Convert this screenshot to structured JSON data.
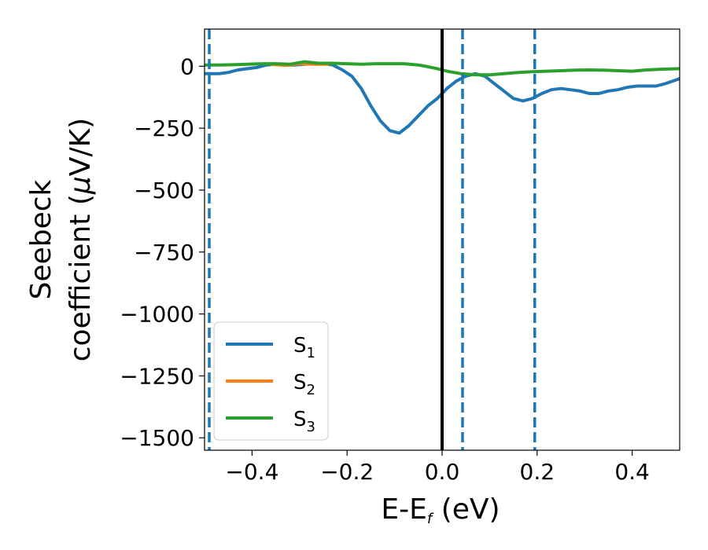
{
  "chart_data": {
    "type": "line",
    "xlabel": {
      "main": "E-E",
      "sub": "f",
      "unit": " (eV)"
    },
    "ylabel": {
      "line1": "Seebeck",
      "line2_pre": "coefficient  (",
      "mu": "μ",
      "line2_post": "V/K)"
    },
    "xlim": [
      -0.5,
      0.5
    ],
    "ylim": [
      -1550,
      150
    ],
    "xticks": [
      -0.4,
      -0.2,
      0.0,
      0.2,
      0.4
    ],
    "xtick_labels": [
      "−0.4",
      "−0.2",
      "0.0",
      "0.2",
      "0.4"
    ],
    "yticks": [
      0,
      -250,
      -500,
      -750,
      -1000,
      -1250,
      -1500
    ],
    "ytick_labels": [
      "0",
      "−250",
      "−500",
      "−750",
      "−1000",
      "−1250",
      "−1500"
    ],
    "grid": false,
    "legend_position": "lower-left",
    "vlines": [
      {
        "x": 0.0,
        "style": "solid",
        "color": "#000000"
      },
      {
        "x": -0.49,
        "style": "dashed",
        "color": "#1f77b4"
      },
      {
        "x": 0.043,
        "style": "dashed",
        "color": "#1f77b4"
      },
      {
        "x": 0.195,
        "style": "dashed",
        "color": "#1f77b4"
      }
    ],
    "series": [
      {
        "name": "S",
        "sub": "1",
        "color": "#1f77b4",
        "x": [
          -0.5,
          -0.47,
          -0.45,
          -0.43,
          -0.41,
          -0.39,
          -0.37,
          -0.35,
          -0.33,
          -0.31,
          -0.29,
          -0.27,
          -0.25,
          -0.23,
          -0.21,
          -0.19,
          -0.17,
          -0.15,
          -0.13,
          -0.11,
          -0.09,
          -0.07,
          -0.05,
          -0.03,
          -0.01,
          0.01,
          0.03,
          0.05,
          0.07,
          0.09,
          0.11,
          0.13,
          0.15,
          0.17,
          0.19,
          0.21,
          0.23,
          0.25,
          0.27,
          0.29,
          0.31,
          0.33,
          0.35,
          0.37,
          0.39,
          0.41,
          0.43,
          0.45,
          0.47,
          0.5
        ],
        "y": [
          -30,
          -30,
          -25,
          -15,
          -10,
          -5,
          5,
          8,
          5,
          5,
          8,
          10,
          10,
          5,
          -15,
          -40,
          -90,
          -160,
          -220,
          -260,
          -270,
          -240,
          -200,
          -160,
          -130,
          -90,
          -60,
          -40,
          -30,
          -40,
          -70,
          -100,
          -130,
          -140,
          -130,
          -110,
          -95,
          -90,
          -95,
          -100,
          -110,
          -110,
          -100,
          -95,
          -85,
          -80,
          -80,
          -80,
          -70,
          -50
        ]
      },
      {
        "name": "S",
        "sub": "2",
        "color": "#ff7f0e",
        "x": [
          -0.36,
          -0.33,
          -0.3,
          -0.27,
          -0.24
        ],
        "y": [
          8,
          3,
          10,
          8,
          8
        ]
      },
      {
        "name": "S",
        "sub": "3",
        "color": "#2ca02c",
        "x": [
          -0.5,
          -0.47,
          -0.44,
          -0.41,
          -0.38,
          -0.35,
          -0.32,
          -0.29,
          -0.26,
          -0.23,
          -0.2,
          -0.17,
          -0.14,
          -0.11,
          -0.08,
          -0.05,
          -0.03,
          -0.01,
          0.01,
          0.04,
          0.07,
          0.1,
          0.13,
          0.16,
          0.19,
          0.22,
          0.25,
          0.28,
          0.31,
          0.34,
          0.37,
          0.4,
          0.43,
          0.46,
          0.5
        ],
        "y": [
          5,
          5,
          6,
          8,
          10,
          10,
          8,
          18,
          12,
          12,
          10,
          8,
          10,
          10,
          10,
          5,
          -2,
          -10,
          -20,
          -30,
          -35,
          -35,
          -30,
          -25,
          -22,
          -20,
          -18,
          -16,
          -15,
          -16,
          -18,
          -20,
          -15,
          -12,
          -10
        ]
      }
    ]
  }
}
